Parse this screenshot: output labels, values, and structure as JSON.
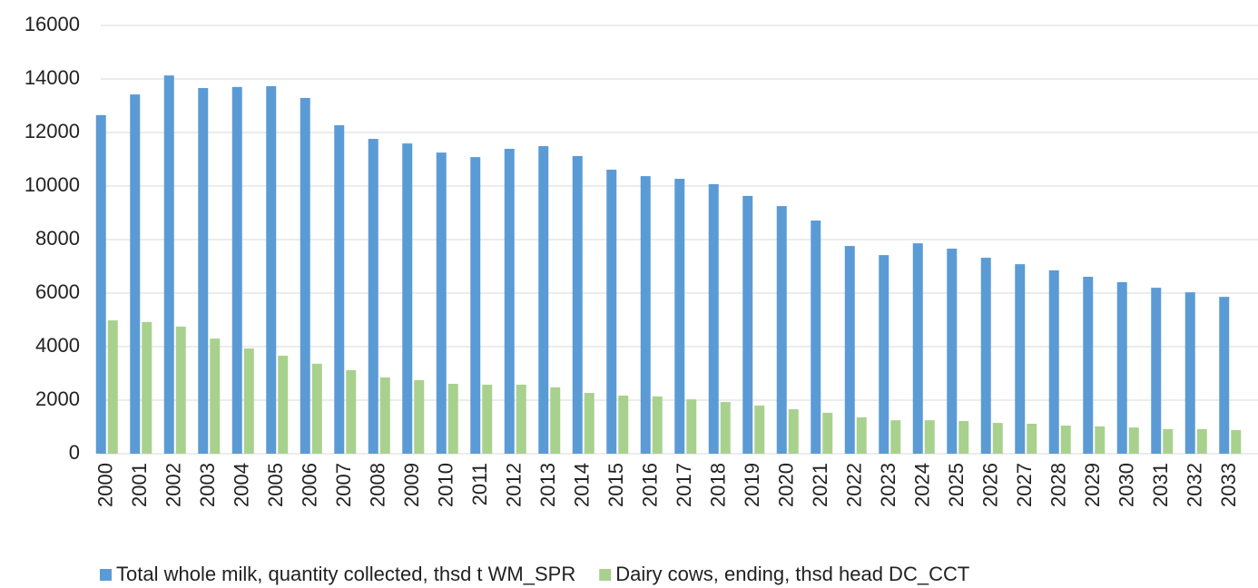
{
  "chart_data": {
    "type": "bar",
    "categories": [
      "2000",
      "2001",
      "2002",
      "2003",
      "2004",
      "2005",
      "2006",
      "2007",
      "2008",
      "2009",
      "2010",
      "2011",
      "2012",
      "2013",
      "2014",
      "2015",
      "2016",
      "2017",
      "2018",
      "2019",
      "2020",
      "2021",
      "2022",
      "2023",
      "2024",
      "2025",
      "2026",
      "2027",
      "2028",
      "2029",
      "2030",
      "2031",
      "2032",
      "2033"
    ],
    "series": [
      {
        "name": "Total whole milk, quantity collected, thsd t WM_SPR",
        "color": "#5b9bd5",
        "values": [
          12650,
          13420,
          14130,
          13660,
          13700,
          13730,
          13290,
          12270,
          11760,
          11590,
          11250,
          11080,
          11390,
          11490,
          11120,
          10610,
          10370,
          10270,
          10070,
          9630,
          9250,
          8710,
          7760,
          7420,
          7860,
          7660,
          7320,
          7080,
          6850,
          6610,
          6410,
          6200,
          6030,
          5860
        ]
      },
      {
        "name": "Dairy cows, ending, thsd head DC_CCT",
        "color": "#a9d18e",
        "values": [
          4980,
          4920,
          4750,
          4300,
          3930,
          3660,
          3360,
          3120,
          2850,
          2750,
          2610,
          2580,
          2580,
          2480,
          2270,
          2170,
          2140,
          2030,
          1930,
          1800,
          1660,
          1530,
          1360,
          1250,
          1250,
          1220,
          1150,
          1120,
          1050,
          1020,
          980,
          920,
          920,
          880
        ]
      }
    ],
    "ylim": [
      0,
      16000
    ],
    "yticks": [
      0,
      2000,
      4000,
      6000,
      8000,
      10000,
      12000,
      14000,
      16000
    ],
    "grid": true,
    "legend": "bottom"
  }
}
